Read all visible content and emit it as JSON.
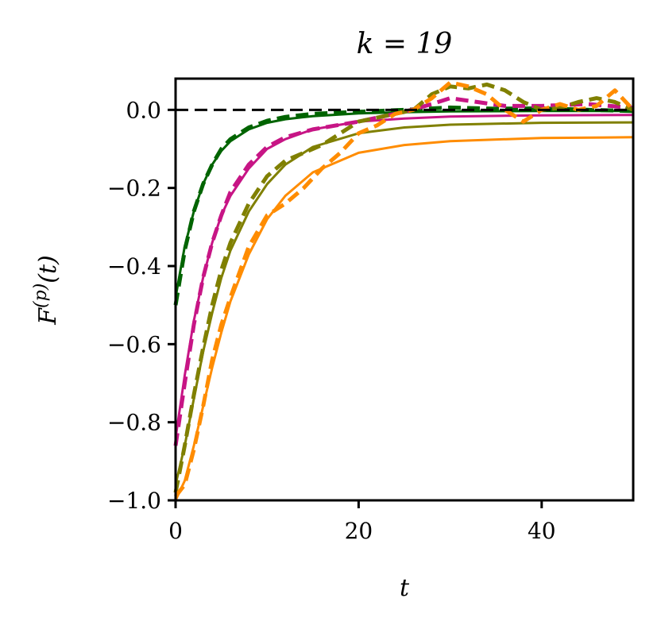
{
  "chart_data": {
    "type": "line",
    "title": "k = 19",
    "xlabel": "t",
    "ylabel": "F^(p)(t)",
    "xlim": [
      0,
      50
    ],
    "ylim": [
      -1.0,
      0.08
    ],
    "xticks": [
      0,
      20,
      40
    ],
    "xtick_labels": [
      "0",
      "20",
      "40"
    ],
    "yticks": [
      0.0,
      -0.2,
      -0.4,
      -0.6,
      -0.8,
      -1.0
    ],
    "ytick_labels": [
      "0.0",
      "−0.2",
      "−0.4",
      "−0.6",
      "−0.8",
      "−1.0"
    ],
    "grid": false,
    "legend": "none",
    "reference_line": {
      "y": 0.0,
      "color": "#000000",
      "style": "dashed"
    },
    "series": [
      {
        "color": "#006400",
        "style": "solid",
        "x": [
          0,
          1,
          2,
          3,
          4,
          5,
          6,
          8,
          10,
          12,
          15,
          20,
          25,
          30,
          40,
          50
        ],
        "y": [
          -0.48,
          -0.35,
          -0.26,
          -0.19,
          -0.14,
          -0.105,
          -0.08,
          -0.05,
          -0.033,
          -0.024,
          -0.016,
          -0.009,
          -0.006,
          -0.004,
          -0.003,
          -0.003
        ]
      },
      {
        "color": "#006400",
        "style": "dashed",
        "x": [
          0,
          1,
          2,
          3,
          4,
          5,
          6,
          8,
          10,
          12,
          15,
          20,
          25,
          30,
          35,
          40,
          45,
          50
        ],
        "y": [
          -0.5,
          -0.36,
          -0.26,
          -0.19,
          -0.14,
          -0.1,
          -0.075,
          -0.045,
          -0.028,
          -0.018,
          -0.01,
          -0.005,
          0.0,
          0.006,
          0.003,
          0.004,
          0.0,
          -0.003
        ]
      },
      {
        "color": "#C71585",
        "style": "solid",
        "x": [
          0,
          1,
          2,
          3,
          4,
          5,
          6,
          8,
          10,
          12,
          15,
          20,
          25,
          30,
          40,
          50
        ],
        "y": [
          -0.84,
          -0.68,
          -0.54,
          -0.43,
          -0.34,
          -0.27,
          -0.22,
          -0.15,
          -0.1,
          -0.075,
          -0.05,
          -0.03,
          -0.022,
          -0.017,
          -0.014,
          -0.013
        ]
      },
      {
        "color": "#C71585",
        "style": "dashed",
        "x": [
          0,
          1,
          2,
          3,
          4,
          5,
          6,
          8,
          10,
          12,
          15,
          20,
          25,
          28,
          30,
          33,
          36,
          40,
          45,
          50
        ],
        "y": [
          -0.86,
          -0.7,
          -0.55,
          -0.43,
          -0.34,
          -0.27,
          -0.21,
          -0.14,
          -0.095,
          -0.07,
          -0.05,
          -0.03,
          -0.005,
          0.015,
          0.03,
          0.02,
          0.01,
          0.01,
          0.015,
          0.005
        ]
      },
      {
        "color": "#808000",
        "style": "solid",
        "x": [
          0,
          1,
          2,
          3,
          4,
          5,
          6,
          8,
          10,
          12,
          15,
          20,
          25,
          30,
          40,
          50
        ],
        "y": [
          -0.96,
          -0.86,
          -0.74,
          -0.62,
          -0.52,
          -0.43,
          -0.36,
          -0.26,
          -0.19,
          -0.14,
          -0.095,
          -0.06,
          -0.045,
          -0.038,
          -0.033,
          -0.032
        ]
      },
      {
        "color": "#808000",
        "style": "dashed",
        "x": [
          0,
          1,
          2,
          3,
          4,
          5,
          6,
          8,
          10,
          12,
          14,
          16,
          18,
          20,
          22,
          24,
          26,
          28,
          30,
          32,
          34,
          36,
          38,
          40,
          42,
          44,
          46,
          48,
          50
        ],
        "y": [
          -0.98,
          -0.86,
          -0.73,
          -0.61,
          -0.5,
          -0.41,
          -0.34,
          -0.24,
          -0.17,
          -0.13,
          -0.11,
          -0.09,
          -0.06,
          -0.03,
          -0.02,
          -0.01,
          0.0,
          0.04,
          0.06,
          0.055,
          0.065,
          0.05,
          0.02,
          0.0,
          0.005,
          0.02,
          0.03,
          0.02,
          0.0
        ]
      },
      {
        "color": "#FF8C00",
        "style": "solid",
        "x": [
          0,
          1,
          2,
          3,
          4,
          5,
          6,
          8,
          10,
          12,
          15,
          20,
          25,
          30,
          40,
          50
        ],
        "y": [
          -1.0,
          -0.95,
          -0.86,
          -0.76,
          -0.66,
          -0.57,
          -0.49,
          -0.37,
          -0.28,
          -0.22,
          -0.16,
          -0.11,
          -0.09,
          -0.08,
          -0.072,
          -0.07
        ]
      },
      {
        "color": "#FF8C00",
        "style": "dashed",
        "x": [
          0,
          1,
          2,
          3,
          4,
          5,
          6,
          8,
          10,
          12,
          14,
          16,
          18,
          20,
          22,
          24,
          26,
          28,
          30,
          32,
          34,
          36,
          38,
          40,
          42,
          44,
          46,
          48,
          50
        ],
        "y": [
          -0.99,
          -0.96,
          -0.87,
          -0.76,
          -0.64,
          -0.55,
          -0.48,
          -0.35,
          -0.27,
          -0.24,
          -0.2,
          -0.15,
          -0.11,
          -0.06,
          -0.04,
          -0.01,
          0.0,
          0.03,
          0.07,
          0.06,
          0.04,
          0.0,
          -0.03,
          0.0,
          0.015,
          0.0,
          0.01,
          0.05,
          0.0
        ]
      }
    ]
  }
}
